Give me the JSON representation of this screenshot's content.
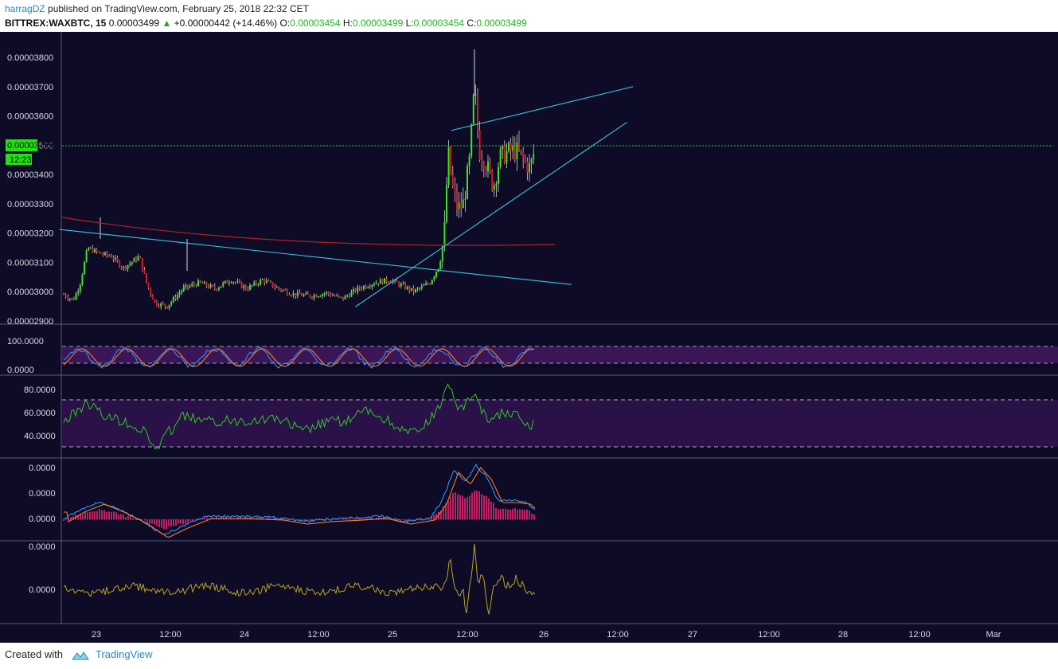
{
  "header": {
    "author": "harragDZ",
    "published_text": "published on TradingView.com, February 25, 2018 22:32 CET",
    "symbol": "BITTREX:WAXBTC, 15",
    "last": "0.00003499",
    "change": "+0.00000442 (+14.46%)",
    "open_label": "O:",
    "open": "0.00003454",
    "high_label": "H:",
    "high": "0.00003499",
    "low_label": "L:",
    "low": "0.00003454",
    "close_label": "C:",
    "close": "0.00003499"
  },
  "price_panel": {
    "y_ticks": [
      "0.00003800",
      "0.00003700",
      "0.00003600",
      "0.00003500",
      "0.00003400",
      "0.00003300",
      "0.00003200",
      "0.00003100",
      "0.00003000",
      "0.00002900"
    ],
    "y_tick_values": [
      3800,
      3700,
      3600,
      3500,
      3400,
      3300,
      3200,
      3100,
      3000,
      2900
    ],
    "last_price_label": "0.00003499",
    "countdown_label": "12:23",
    "last_price_value": 3499
  },
  "stoch_panel": {
    "y_ticks": [
      "100.0000",
      "0.0000"
    ]
  },
  "rsi_panel": {
    "y_ticks": [
      "80.0000",
      "60.0000",
      "40.0000"
    ]
  },
  "macd_panel": {
    "y_ticks": [
      "0.0000",
      "0.0000",
      "0.0000"
    ]
  },
  "osc_panel": {
    "y_ticks": [
      "0.0000",
      "0.0000"
    ]
  },
  "x_axis": {
    "ticks": [
      "23",
      "12:00",
      "24",
      "12:00",
      "25",
      "12:00",
      "26",
      "12:00",
      "27",
      "12:00",
      "28",
      "12:00",
      "Mar"
    ]
  },
  "colors": {
    "background": "#0e0b27",
    "up_candle": "#39e61b",
    "down_candle": "#d61c1c",
    "trendline": "#37c8dd",
    "ma_line": "#b32020",
    "last_price": "#22e014",
    "osc_band": "#3a1657",
    "k_line": "#2f8fff",
    "d_line": "#ff7c1a",
    "rsi_line": "#2fc72a",
    "hist": "#e0246e",
    "osc_line": "#b9a521"
  },
  "chart_data": {
    "type": "candlestick",
    "price_unit": "1e-8 BTC",
    "trendlines": [
      {
        "from": {
          "x": "22 18:00",
          "y": 3212
        },
        "to": {
          "x": "26 05:00",
          "y": 3024
        }
      },
      {
        "from": {
          "x": "24 18:00",
          "y": 2948
        },
        "to": {
          "x": "26 14:00",
          "y": 3578
        }
      },
      {
        "from": {
          "x": "25 09:30",
          "y": 3550
        },
        "to": {
          "x": "26 15:00",
          "y": 3700
        }
      }
    ]
  },
  "footer": {
    "created_with": "Created with",
    "brand": "TradingView"
  }
}
